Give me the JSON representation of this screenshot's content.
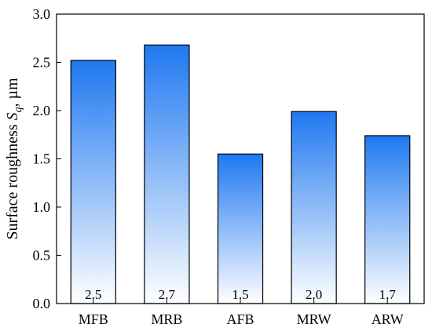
{
  "chart_data": {
    "type": "bar",
    "categories": [
      "MFB",
      "MRB",
      "AFB",
      "MRW",
      "ARW"
    ],
    "values": [
      2.52,
      2.68,
      1.55,
      1.99,
      1.74
    ],
    "data_labels": [
      "2.5",
      "2.7",
      "1.5",
      "2.0",
      "1.7"
    ],
    "ylabel": {
      "prefix": "Surface roughness ",
      "symbol": "S",
      "subscript": "q",
      "suffix": ", µm"
    },
    "xlabel": "",
    "ylim": [
      0,
      3.0
    ],
    "yticks": [
      "0.0",
      "0.5",
      "1.0",
      "1.5",
      "2.0",
      "2.5",
      "3.0"
    ],
    "grid": false,
    "bar_gradient": {
      "top": "#1f78f0",
      "bottom": "#ffffff"
    },
    "bar_edge_color": "#000000"
  }
}
